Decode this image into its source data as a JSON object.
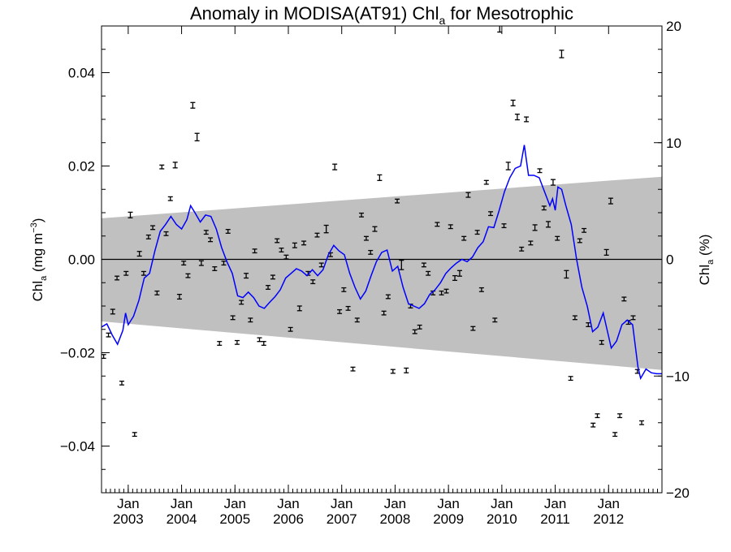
{
  "chart_data": {
    "type": "scatter",
    "title_main": "Anomaly in MODISA(AT91) Chl",
    "title_sub": "a",
    "title_rest": " for Mesotrophic",
    "ylabel_left_main": "Chl",
    "ylabel_left_sub": "a",
    "ylabel_left_unit_pre": " (mg m",
    "ylabel_left_unit_sup": "−3",
    "ylabel_left_unit_post": ")",
    "ylabel_right_main": "Chl",
    "ylabel_right_sub": "a",
    "ylabel_right_unit": " (%)",
    "xlim": [
      2002.5,
      2013.0
    ],
    "ylim": [
      -0.05,
      0.05
    ],
    "ylim_right": [
      -20,
      20
    ],
    "x_month_tick_label": "Jan",
    "x_ticks": [
      2003,
      2004,
      2005,
      2006,
      2007,
      2008,
      2009,
      2010,
      2011,
      2012
    ],
    "x_tick_years": [
      "2003",
      "2004",
      "2005",
      "2006",
      "2007",
      "2008",
      "2009",
      "2010",
      "2011",
      "2012"
    ],
    "y_ticks_left": [
      -0.04,
      -0.02,
      0.0,
      0.02,
      0.04
    ],
    "y_tick_labels_left": [
      "−0.04",
      "−0.02",
      "0.00",
      "0.02",
      "0.04"
    ],
    "y_ticks_right": [
      -20,
      -10,
      0,
      10,
      20
    ],
    "y_tick_labels_right": [
      "−20",
      "−10",
      "0",
      "10",
      "20"
    ],
    "zero_line": 0,
    "envelope": {
      "x": [
        2002.5,
        2013.0
      ],
      "upper": [
        0.0088,
        0.0177
      ],
      "lower": [
        -0.0133,
        -0.0237
      ],
      "color": "#c0c0c0"
    },
    "smoothed_series": {
      "color": "#0000ff",
      "points": [
        [
          2002.5,
          -0.0145
        ],
        [
          2002.6,
          -0.0138
        ],
        [
          2002.7,
          -0.0162
        ],
        [
          2002.8,
          -0.0182
        ],
        [
          2002.9,
          -0.0152
        ],
        [
          2002.95,
          -0.0115
        ],
        [
          2003.0,
          -0.014
        ],
        [
          2003.1,
          -0.0122
        ],
        [
          2003.2,
          -0.0088
        ],
        [
          2003.3,
          -0.004
        ],
        [
          2003.4,
          -0.003
        ],
        [
          2003.5,
          0.0018
        ],
        [
          2003.6,
          0.006
        ],
        [
          2003.7,
          0.0075
        ],
        [
          2003.8,
          0.0092
        ],
        [
          2003.9,
          0.0075
        ],
        [
          2004.0,
          0.0065
        ],
        [
          2004.1,
          0.0085
        ],
        [
          2004.17,
          0.0115
        ],
        [
          2004.25,
          0.01
        ],
        [
          2004.35,
          0.008
        ],
        [
          2004.45,
          0.0095
        ],
        [
          2004.55,
          0.0092
        ],
        [
          2004.65,
          0.0065
        ],
        [
          2004.75,
          0.0025
        ],
        [
          2004.85,
          -0.0005
        ],
        [
          2004.95,
          -0.003
        ],
        [
          2005.05,
          -0.0078
        ],
        [
          2005.15,
          -0.0082
        ],
        [
          2005.25,
          -0.007
        ],
        [
          2005.35,
          -0.0082
        ],
        [
          2005.45,
          -0.01
        ],
        [
          2005.55,
          -0.0105
        ],
        [
          2005.65,
          -0.0092
        ],
        [
          2005.75,
          -0.008
        ],
        [
          2005.85,
          -0.0065
        ],
        [
          2005.95,
          -0.004
        ],
        [
          2006.05,
          -0.003
        ],
        [
          2006.15,
          -0.002
        ],
        [
          2006.25,
          -0.0025
        ],
        [
          2006.35,
          -0.0035
        ],
        [
          2006.45,
          -0.0022
        ],
        [
          2006.55,
          -0.0035
        ],
        [
          2006.65,
          -0.0022
        ],
        [
          2006.75,
          0.001
        ],
        [
          2006.85,
          0.003
        ],
        [
          2006.95,
          0.0018
        ],
        [
          2007.05,
          0.001
        ],
        [
          2007.15,
          -0.003
        ],
        [
          2007.25,
          -0.006
        ],
        [
          2007.35,
          -0.0085
        ],
        [
          2007.45,
          -0.0068
        ],
        [
          2007.55,
          -0.0035
        ],
        [
          2007.65,
          -0.0005
        ],
        [
          2007.75,
          0.0015
        ],
        [
          2007.85,
          0.002
        ],
        [
          2007.95,
          -0.0025
        ],
        [
          2008.05,
          -0.0015
        ],
        [
          2008.15,
          -0.006
        ],
        [
          2008.25,
          -0.0095
        ],
        [
          2008.35,
          -0.01
        ],
        [
          2008.45,
          -0.0105
        ],
        [
          2008.55,
          -0.0095
        ],
        [
          2008.65,
          -0.0075
        ],
        [
          2008.75,
          -0.0065
        ],
        [
          2008.85,
          -0.005
        ],
        [
          2008.95,
          -0.003
        ],
        [
          2009.05,
          -0.0018
        ],
        [
          2009.15,
          -0.0008
        ],
        [
          2009.25,
          0.0
        ],
        [
          2009.35,
          -0.0005
        ],
        [
          2009.45,
          0.0005
        ],
        [
          2009.55,
          0.0025
        ],
        [
          2009.65,
          0.0038
        ],
        [
          2009.75,
          0.007
        ],
        [
          2009.85,
          0.0068
        ],
        [
          2009.95,
          0.0105
        ],
        [
          2010.05,
          0.0145
        ],
        [
          2010.15,
          0.0175
        ],
        [
          2010.25,
          0.0195
        ],
        [
          2010.35,
          0.02
        ],
        [
          2010.42,
          0.0245
        ],
        [
          2010.5,
          0.018
        ],
        [
          2010.6,
          0.018
        ],
        [
          2010.7,
          0.0175
        ],
        [
          2010.8,
          0.0145
        ],
        [
          2010.9,
          0.0115
        ],
        [
          2010.95,
          0.013
        ],
        [
          2011.0,
          0.0105
        ],
        [
          2011.05,
          0.0155
        ],
        [
          2011.12,
          0.015
        ],
        [
          2011.2,
          0.0115
        ],
        [
          2011.3,
          0.0075
        ],
        [
          2011.4,
          0.0
        ],
        [
          2011.5,
          -0.006
        ],
        [
          2011.6,
          -0.01
        ],
        [
          2011.7,
          -0.0155
        ],
        [
          2011.8,
          -0.0145
        ],
        [
          2011.9,
          -0.0115
        ],
        [
          2011.95,
          -0.014
        ],
        [
          2012.05,
          -0.019
        ],
        [
          2012.15,
          -0.0175
        ],
        [
          2012.25,
          -0.014
        ],
        [
          2012.35,
          -0.013
        ],
        [
          2012.45,
          -0.014
        ],
        [
          2012.55,
          -0.023
        ],
        [
          2012.6,
          -0.0255
        ],
        [
          2012.7,
          -0.0235
        ],
        [
          2012.8,
          -0.0243
        ],
        [
          2012.9,
          -0.0245
        ],
        [
          2013.0,
          -0.0245
        ]
      ]
    },
    "monthly_anomalies": {
      "color": "#000000",
      "points": [
        [
          2002.54,
          -0.0208,
          0.0004
        ],
        [
          2002.63,
          -0.0162,
          0.0004
        ],
        [
          2002.71,
          -0.0112,
          0.0005
        ],
        [
          2002.79,
          -0.004,
          0.0004
        ],
        [
          2002.88,
          -0.0265,
          0.0004
        ],
        [
          2002.96,
          -0.003,
          0.0004
        ],
        [
          2003.04,
          0.0095,
          0.0006
        ],
        [
          2003.12,
          -0.0375,
          0.0004
        ],
        [
          2003.21,
          0.0012,
          0.0005
        ],
        [
          2003.29,
          -0.003,
          0.0004
        ],
        [
          2003.38,
          0.0048,
          0.0004
        ],
        [
          2003.46,
          0.0068,
          0.0004
        ],
        [
          2003.54,
          -0.0072,
          0.0004
        ],
        [
          2003.63,
          0.0198,
          0.0004
        ],
        [
          2003.71,
          0.0055,
          0.0004
        ],
        [
          2003.79,
          0.013,
          0.0004
        ],
        [
          2003.88,
          0.0202,
          0.0006
        ],
        [
          2003.96,
          -0.008,
          0.0005
        ],
        [
          2004.04,
          -0.0008,
          0.0004
        ],
        [
          2004.12,
          -0.0035,
          0.0004
        ],
        [
          2004.21,
          0.033,
          0.0006
        ],
        [
          2004.29,
          0.0262,
          0.0008
        ],
        [
          2004.37,
          -0.0008,
          0.0005
        ],
        [
          2004.46,
          0.0058,
          0.0004
        ],
        [
          2004.54,
          0.0042,
          0.0004
        ],
        [
          2004.62,
          -0.002,
          0.0004
        ],
        [
          2004.71,
          -0.018,
          0.0004
        ],
        [
          2004.79,
          -0.0008,
          0.0004
        ],
        [
          2004.87,
          0.006,
          0.0004
        ],
        [
          2004.96,
          -0.0125,
          0.0004
        ],
        [
          2005.04,
          -0.0178,
          0.0004
        ],
        [
          2005.12,
          -0.0092,
          0.0004
        ],
        [
          2005.21,
          -0.0035,
          0.0005
        ],
        [
          2005.29,
          -0.013,
          0.0004
        ],
        [
          2005.37,
          0.0018,
          0.0004
        ],
        [
          2005.46,
          -0.0172,
          0.0004
        ],
        [
          2005.54,
          -0.018,
          0.0004
        ],
        [
          2005.62,
          -0.006,
          0.0004
        ],
        [
          2005.71,
          -0.0038,
          0.0004
        ],
        [
          2005.79,
          0.004,
          0.0004
        ],
        [
          2005.87,
          0.002,
          0.0004
        ],
        [
          2005.96,
          0.0005,
          0.0004
        ],
        [
          2006.04,
          -0.015,
          0.0004
        ],
        [
          2006.12,
          0.003,
          0.0005
        ],
        [
          2006.21,
          -0.0105,
          0.0005
        ],
        [
          2006.29,
          0.0035,
          0.0004
        ],
        [
          2006.37,
          -0.003,
          0.0004
        ],
        [
          2006.46,
          -0.0048,
          0.0004
        ],
        [
          2006.54,
          0.0052,
          0.0004
        ],
        [
          2006.62,
          -0.0012,
          0.0004
        ],
        [
          2006.71,
          0.0065,
          0.0008
        ],
        [
          2006.79,
          0.001,
          0.0004
        ],
        [
          2006.87,
          0.0198,
          0.0006
        ],
        [
          2006.96,
          -0.0112,
          0.0004
        ],
        [
          2007.04,
          -0.0065,
          0.0004
        ],
        [
          2007.12,
          -0.0105,
          0.0004
        ],
        [
          2007.21,
          -0.0235,
          0.0004
        ],
        [
          2007.29,
          -0.013,
          0.0004
        ],
        [
          2007.37,
          0.0095,
          0.0004
        ],
        [
          2007.46,
          0.0045,
          0.0004
        ],
        [
          2007.54,
          0.0015,
          0.0004
        ],
        [
          2007.62,
          0.0065,
          0.0005
        ],
        [
          2007.71,
          0.0175,
          0.0006
        ],
        [
          2007.79,
          -0.0115,
          0.0004
        ],
        [
          2007.87,
          -0.008,
          0.0004
        ],
        [
          2007.96,
          -0.024,
          0.0004
        ],
        [
          2008.04,
          0.0125,
          0.0004
        ],
        [
          2008.12,
          -0.0012,
          0.001
        ],
        [
          2008.21,
          -0.0238,
          0.0005
        ],
        [
          2008.29,
          -0.01,
          0.0004
        ],
        [
          2008.37,
          -0.0155,
          0.0004
        ],
        [
          2008.46,
          -0.0145,
          0.0004
        ],
        [
          2008.54,
          -0.0012,
          0.0004
        ],
        [
          2008.62,
          -0.003,
          0.0004
        ],
        [
          2008.71,
          -0.0072,
          0.0004
        ],
        [
          2008.79,
          0.0075,
          0.0004
        ],
        [
          2008.87,
          -0.0072,
          0.0004
        ],
        [
          2008.96,
          -0.0068,
          0.0004
        ],
        [
          2009.04,
          0.007,
          0.0004
        ],
        [
          2009.12,
          -0.004,
          0.0005
        ],
        [
          2009.21,
          -0.003,
          0.0006
        ],
        [
          2009.29,
          0.0045,
          0.0004
        ],
        [
          2009.37,
          0.0138,
          0.0005
        ],
        [
          2009.46,
          -0.0148,
          0.0004
        ],
        [
          2009.54,
          0.0058,
          0.0004
        ],
        [
          2009.62,
          -0.0065,
          0.0004
        ],
        [
          2009.71,
          0.0165,
          0.0004
        ],
        [
          2009.79,
          0.0098,
          0.0004
        ],
        [
          2009.87,
          -0.013,
          0.0004
        ],
        [
          2009.96,
          0.0495,
          0.0008
        ],
        [
          2010.04,
          0.0072,
          0.0004
        ],
        [
          2010.12,
          0.02,
          0.0008
        ],
        [
          2010.21,
          0.0335,
          0.0006
        ],
        [
          2010.29,
          0.0305,
          0.0006
        ],
        [
          2010.37,
          0.0022,
          0.0004
        ],
        [
          2010.46,
          0.03,
          0.0005
        ],
        [
          2010.54,
          0.0035,
          0.0004
        ],
        [
          2010.62,
          0.0068,
          0.0006
        ],
        [
          2010.71,
          0.019,
          0.0004
        ],
        [
          2010.79,
          0.011,
          0.0004
        ],
        [
          2010.87,
          0.0075,
          0.0006
        ],
        [
          2010.96,
          0.0165,
          0.0006
        ],
        [
          2011.04,
          0.0045,
          0.0004
        ],
        [
          2011.12,
          0.044,
          0.0008
        ],
        [
          2011.21,
          -0.0032,
          0.0008
        ],
        [
          2011.29,
          -0.0255,
          0.0004
        ],
        [
          2011.37,
          -0.0125,
          0.0004
        ],
        [
          2011.46,
          0.004,
          0.0004
        ],
        [
          2011.54,
          0.0062,
          0.0004
        ],
        [
          2011.62,
          -0.014,
          0.0004
        ],
        [
          2011.71,
          -0.0355,
          0.0004
        ],
        [
          2011.79,
          -0.0335,
          0.0004
        ],
        [
          2011.87,
          -0.0178,
          0.0004
        ],
        [
          2011.96,
          0.0015,
          0.0006
        ],
        [
          2012.04,
          0.0125,
          0.0006
        ],
        [
          2012.12,
          -0.0375,
          0.0004
        ],
        [
          2012.21,
          -0.0335,
          0.0004
        ],
        [
          2012.29,
          -0.0085,
          0.0004
        ],
        [
          2012.37,
          -0.0135,
          0.0004
        ],
        [
          2012.46,
          -0.0125,
          0.0004
        ],
        [
          2012.54,
          -0.024,
          0.0004
        ],
        [
          2012.62,
          -0.035,
          0.0004
        ]
      ]
    }
  }
}
